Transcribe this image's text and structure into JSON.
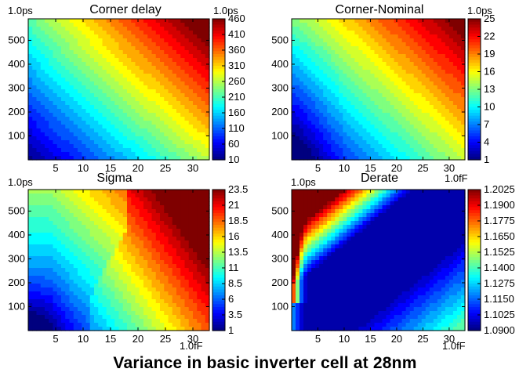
{
  "caption": "Variance in basic inverter cell at 28nm",
  "colormap": [
    "#00007f",
    "#0000ff",
    "#007fff",
    "#00ffff",
    "#7fff7f",
    "#ffff00",
    "#ff7f00",
    "#ff0000",
    "#7f0000"
  ],
  "chart_data": [
    {
      "type": "heatmap",
      "title": "Corner delay",
      "y_unit_label": "1.0ps",
      "x_unit_label": "",
      "colorbar_unit_label": "1.0ps",
      "x_range": [
        0,
        33
      ],
      "y_range": [
        0,
        590
      ],
      "x_ticks": [
        "5",
        "10",
        "15",
        "20",
        "25",
        "30"
      ],
      "y_ticks": [
        "100",
        "200",
        "300",
        "400",
        "500"
      ],
      "colorbar_range": [
        10,
        460
      ],
      "colorbar_ticks": [
        "460",
        "410",
        "360",
        "310",
        "260",
        "210",
        "160",
        "110",
        "60",
        "10"
      ]
    },
    {
      "type": "heatmap",
      "title": "Corner-Nominal",
      "y_unit_label": "1.0ps",
      "x_unit_label": "1.0fF",
      "colorbar_unit_label": "1.0ps",
      "x_range": [
        0,
        33
      ],
      "y_range": [
        0,
        590
      ],
      "x_ticks": [
        "5",
        "10",
        "15",
        "20",
        "25",
        "30"
      ],
      "y_ticks": [
        "100",
        "200",
        "300",
        "400",
        "500"
      ],
      "colorbar_range": [
        1,
        25
      ],
      "colorbar_ticks": [
        "25",
        "22",
        "19",
        "16",
        "13",
        "10",
        "7",
        "4",
        "1"
      ]
    },
    {
      "type": "heatmap",
      "title": "Sigma",
      "y_unit_label": "1.0ps",
      "x_unit_label": "1.0fF",
      "colorbar_unit_label": "",
      "x_range": [
        0,
        33
      ],
      "y_range": [
        0,
        590
      ],
      "x_ticks": [
        "5",
        "10",
        "15",
        "20",
        "25",
        "30"
      ],
      "y_ticks": [
        "100",
        "200",
        "300",
        "400",
        "500"
      ],
      "colorbar_range": [
        1,
        23.5
      ],
      "colorbar_ticks": [
        "23.5",
        "21",
        "18.5",
        "16",
        "13.5",
        "11",
        "8.5",
        "6",
        "3.5",
        "1"
      ]
    },
    {
      "type": "heatmap",
      "title": "Derate",
      "y_unit_label": "1.0ps",
      "x_unit_label": "1.0fF",
      "colorbar_unit_label": "",
      "x_range": [
        0,
        33
      ],
      "y_range": [
        0,
        590
      ],
      "x_ticks": [
        "5",
        "10",
        "15",
        "20",
        "25",
        "30"
      ],
      "y_ticks": [
        "100",
        "200",
        "300",
        "400",
        "500"
      ],
      "colorbar_range": [
        1.09,
        1.2025
      ],
      "colorbar_ticks": [
        "1.2025",
        "1.1900",
        "1.1775",
        "1.1650",
        "1.1525",
        "1.1400",
        "1.1275",
        "1.1150",
        "1.1025",
        "1.0900"
      ]
    }
  ]
}
